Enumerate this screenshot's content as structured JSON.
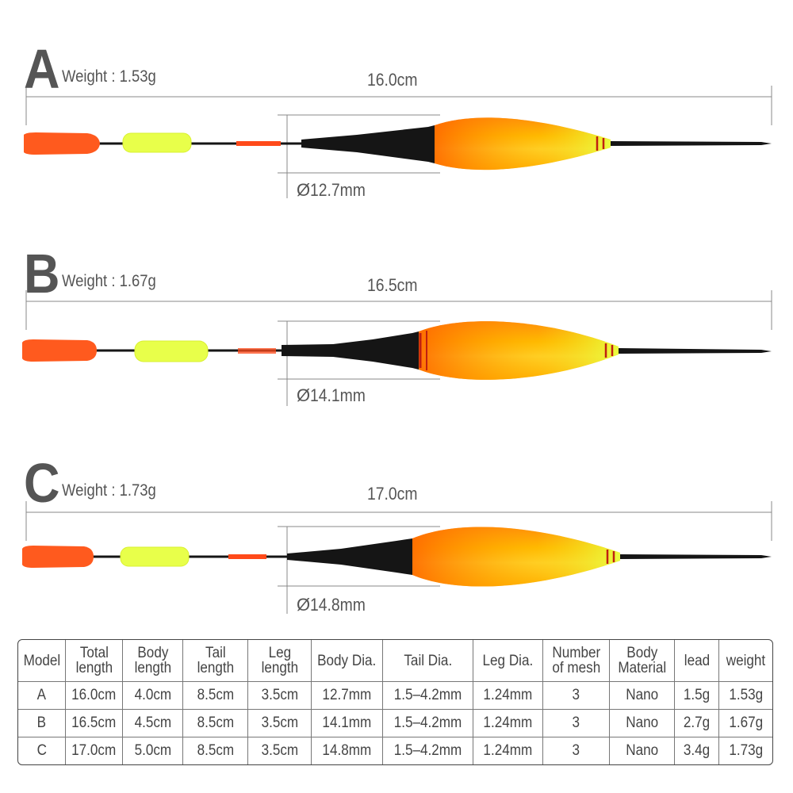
{
  "models": [
    {
      "letter": "A",
      "weight": "Weight : 1.53g",
      "length": "16.0cm",
      "dia": "12.7mm"
    },
    {
      "letter": "B",
      "weight": "Weight : 1.67g",
      "length": "16.5cm",
      "dia": "14.1mm"
    },
    {
      "letter": "C",
      "weight": "Weight : 1.73g",
      "length": "17.0cm",
      "dia": "14.8mm"
    }
  ],
  "diameter_symbol": "Ø",
  "colors": {
    "orange": "#ff5a1e",
    "yellow_green": "#e8ff4a",
    "black": "#151515"
  },
  "table": {
    "headers": [
      "Model",
      "Total\nlength",
      "Body\nlength",
      "Tail\nlength",
      "Leg\nlength",
      "Body Dia.",
      "Tail Dia.",
      "Leg Dia.",
      "Number\nof mesh",
      "Body\nMaterial",
      "lead",
      "weight"
    ],
    "rows": [
      [
        "A",
        "16.0cm",
        "4.0cm",
        "8.5cm",
        "3.5cm",
        "12.7mm",
        "1.5–4.2mm",
        "1.24mm",
        "3",
        "Nano",
        "1.5g",
        "1.53g"
      ],
      [
        "B",
        "16.5cm",
        "4.5cm",
        "8.5cm",
        "3.5cm",
        "14.1mm",
        "1.5–4.2mm",
        "1.24mm",
        "3",
        "Nano",
        "2.7g",
        "1.67g"
      ],
      [
        "C",
        "17.0cm",
        "5.0cm",
        "8.5cm",
        "3.5cm",
        "14.8mm",
        "1.5–4.2mm",
        "1.24mm",
        "3",
        "Nano",
        "3.4g",
        "1.73g"
      ]
    ]
  }
}
